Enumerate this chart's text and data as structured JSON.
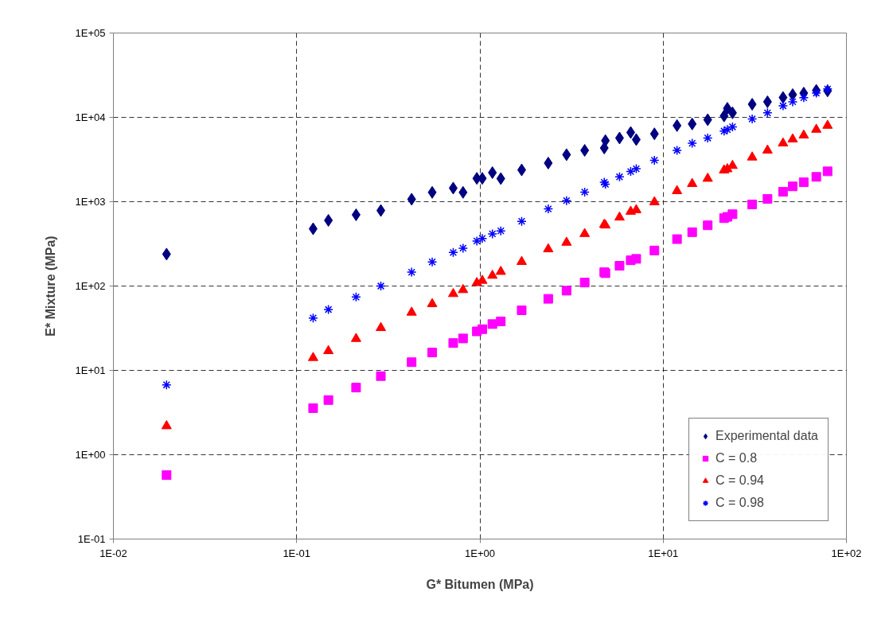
{
  "chart_data": {
    "type": "scatter",
    "xlabel": "G* Bitumen (MPa)",
    "ylabel": "E* Mixture (MPa)",
    "xlim": [
      0.01,
      100
    ],
    "ylim": [
      0.1,
      100000
    ],
    "log": "xy",
    "xticks": [
      {
        "value": 0.01,
        "label": "1E-02"
      },
      {
        "value": 0.1,
        "label": "1E-01"
      },
      {
        "value": 1,
        "label": "1E+00"
      },
      {
        "value": 10,
        "label": "1E+01"
      },
      {
        "value": 100,
        "label": "1E+02"
      }
    ],
    "yticks": [
      {
        "value": 0.1,
        "label": "1E-01"
      },
      {
        "value": 1,
        "label": "1E+00"
      },
      {
        "value": 10,
        "label": "1E+01"
      },
      {
        "value": 100,
        "label": "1E+02"
      },
      {
        "value": 1000,
        "label": "1E+03"
      },
      {
        "value": 10000,
        "label": "1E+04"
      },
      {
        "value": 100000,
        "label": "1E+05"
      }
    ],
    "grid": true,
    "legend": "bottom right",
    "series": [
      {
        "name": "Experimental data",
        "color": "#000080",
        "marker": "diamond",
        "x": [
          0.0195,
          0.123,
          0.149,
          0.211,
          0.288,
          0.424,
          0.549,
          0.715,
          0.809,
          0.962,
          1.03,
          1.17,
          1.3,
          1.69,
          2.36,
          2.97,
          3.73,
          4.77,
          4.84,
          5.78,
          6.65,
          7.13,
          8.96,
          11.9,
          14.4,
          17.5,
          21.5,
          22.4,
          23.9,
          30.6,
          37.1,
          45.1,
          50.9,
          58.5,
          68.5,
          78.9
        ],
        "values": [
          239,
          477,
          601,
          700,
          786,
          1070,
          1290,
          1450,
          1290,
          1890,
          1890,
          2210,
          1880,
          2380,
          2870,
          3610,
          4060,
          4330,
          5300,
          5690,
          6620,
          5450,
          6380,
          7990,
          8350,
          9370,
          10400,
          12800,
          11300,
          14300,
          15300,
          17200,
          18600,
          19400,
          20900,
          20600
        ]
      },
      {
        "name": "C = 0.8",
        "color": "#ff00ff",
        "marker": "square",
        "x": [
          0.0195,
          0.123,
          0.149,
          0.211,
          0.288,
          0.424,
          0.549,
          0.715,
          0.809,
          0.962,
          1.03,
          1.17,
          1.3,
          1.69,
          2.36,
          2.97,
          3.73,
          4.77,
          4.84,
          5.78,
          6.65,
          7.13,
          8.96,
          11.9,
          14.4,
          17.5,
          21.5,
          22.4,
          23.9,
          30.6,
          37.1,
          45.1,
          50.9,
          58.5,
          68.5,
          78.9
        ],
        "values": [
          0.573,
          3.56,
          4.45,
          6.25,
          8.55,
          12.5,
          16.3,
          21.1,
          23.9,
          29.0,
          30.8,
          35.4,
          38.1,
          51.6,
          70.5,
          88.1,
          110,
          146,
          142,
          174,
          202,
          210,
          264,
          360,
          435,
          525,
          638,
          661,
          711,
          929,
          1080,
          1310,
          1520,
          1700,
          1970,
          2290
        ]
      },
      {
        "name": "C = 0.94",
        "color": "#ff0000",
        "marker": "triangle",
        "x": [
          0.0195,
          0.123,
          0.149,
          0.211,
          0.288,
          0.424,
          0.549,
          0.715,
          0.809,
          0.962,
          1.03,
          1.17,
          1.3,
          1.69,
          2.36,
          2.97,
          3.73,
          4.77,
          4.84,
          5.78,
          6.65,
          7.13,
          8.96,
          11.9,
          14.4,
          17.5,
          21.5,
          22.4,
          23.9,
          30.6,
          37.1,
          45.1,
          50.9,
          58.5,
          68.5,
          78.9
        ],
        "values": [
          2.19,
          14.1,
          17.0,
          23.7,
          31.9,
          48.6,
          61.3,
          80.8,
          90.0,
          109,
          116,
          133,
          148,
          194,
          274,
          328,
          416,
          535,
          525,
          652,
          764,
          798,
          991,
          1340,
          1630,
          1880,
          2360,
          2440,
          2670,
          3360,
          4060,
          4930,
          5500,
          6120,
          7170,
          7990
        ]
      },
      {
        "name": "C = 0.98",
        "color": "#0000ff",
        "marker": "cross",
        "x": [
          0.0195,
          0.123,
          0.149,
          0.211,
          0.288,
          0.424,
          0.549,
          0.715,
          0.809,
          0.962,
          1.03,
          1.17,
          1.3,
          1.69,
          2.36,
          2.97,
          3.73,
          4.77,
          4.84,
          5.78,
          6.65,
          7.13,
          8.96,
          11.9,
          14.4,
          17.5,
          21.5,
          22.4,
          23.9,
          30.6,
          37.1,
          45.1,
          50.9,
          58.5,
          68.5,
          78.9
        ],
        "values": [
          6.73,
          41.8,
          52.7,
          74.0,
          100,
          146,
          193,
          250,
          281,
          342,
          367,
          416,
          451,
          585,
          821,
          1030,
          1300,
          1700,
          1610,
          1970,
          2280,
          2460,
          3100,
          4060,
          4930,
          5690,
          6870,
          7170,
          7710,
          9580,
          11300,
          13700,
          15300,
          17100,
          19400,
          21700
        ]
      }
    ]
  }
}
